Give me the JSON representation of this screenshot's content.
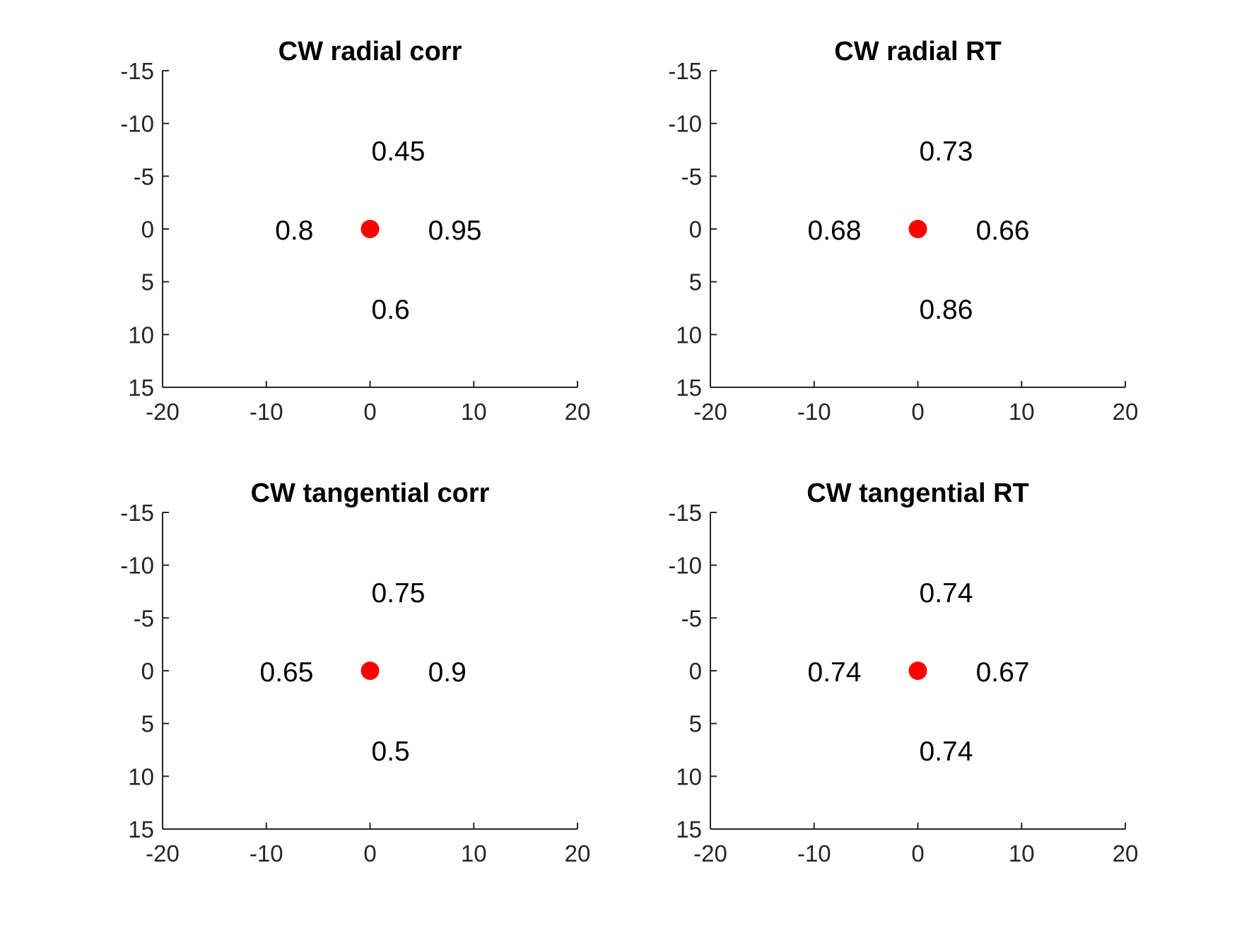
{
  "chart_data": [
    {
      "type": "scatter",
      "title": "CW radial corr",
      "xlim": [
        -20,
        20
      ],
      "ylim": [
        -15,
        15
      ],
      "y_reversed": true,
      "xticks": [
        "-20",
        "-10",
        "0",
        "10",
        "20"
      ],
      "yticks": [
        "-15",
        "-10",
        "-5",
        "0",
        "5",
        "10",
        "15"
      ],
      "grid": false,
      "marker": {
        "x": 0,
        "y": 0,
        "color": "#ff0000"
      },
      "annotations": [
        {
          "x": 0,
          "y": -7.5,
          "text": "0.45"
        },
        {
          "x": -7.5,
          "y": 0,
          "text": "0.8"
        },
        {
          "x": 7.5,
          "y": 0,
          "text": "0.95"
        },
        {
          "x": 0,
          "y": 7.5,
          "text": "0.6"
        }
      ]
    },
    {
      "type": "scatter",
      "title": "CW radial RT",
      "xlim": [
        -20,
        20
      ],
      "ylim": [
        -15,
        15
      ],
      "y_reversed": true,
      "xticks": [
        "-20",
        "-10",
        "0",
        "10",
        "20"
      ],
      "yticks": [
        "-15",
        "-10",
        "-5",
        "0",
        "5",
        "10",
        "15"
      ],
      "grid": false,
      "marker": {
        "x": 0,
        "y": 0,
        "color": "#ff0000"
      },
      "annotations": [
        {
          "x": 0,
          "y": -7.5,
          "text": "0.73"
        },
        {
          "x": -7.5,
          "y": 0,
          "text": "0.68"
        },
        {
          "x": 7.5,
          "y": 0,
          "text": "0.66"
        },
        {
          "x": 0,
          "y": 7.5,
          "text": "0.86"
        }
      ]
    },
    {
      "type": "scatter",
      "title": "CW tangential corr",
      "xlim": [
        -20,
        20
      ],
      "ylim": [
        -15,
        15
      ],
      "y_reversed": true,
      "xticks": [
        "-20",
        "-10",
        "0",
        "10",
        "20"
      ],
      "yticks": [
        "-15",
        "-10",
        "-5",
        "0",
        "5",
        "10",
        "15"
      ],
      "grid": false,
      "marker": {
        "x": 0,
        "y": 0,
        "color": "#ff0000"
      },
      "annotations": [
        {
          "x": 0,
          "y": -7.5,
          "text": "0.75"
        },
        {
          "x": -7.5,
          "y": 0,
          "text": "0.65"
        },
        {
          "x": 7.5,
          "y": 0,
          "text": "0.9"
        },
        {
          "x": 0,
          "y": 7.5,
          "text": "0.5"
        }
      ]
    },
    {
      "type": "scatter",
      "title": "CW tangential RT",
      "xlim": [
        -20,
        20
      ],
      "ylim": [
        -15,
        15
      ],
      "y_reversed": true,
      "xticks": [
        "-20",
        "-10",
        "0",
        "10",
        "20"
      ],
      "yticks": [
        "-15",
        "-10",
        "-5",
        "0",
        "5",
        "10",
        "15"
      ],
      "grid": false,
      "marker": {
        "x": 0,
        "y": 0,
        "color": "#ff0000"
      },
      "annotations": [
        {
          "x": 0,
          "y": -7.5,
          "text": "0.74"
        },
        {
          "x": -7.5,
          "y": 0,
          "text": "0.74"
        },
        {
          "x": 7.5,
          "y": 0,
          "text": "0.67"
        },
        {
          "x": 0,
          "y": 7.5,
          "text": "0.74"
        }
      ]
    }
  ]
}
